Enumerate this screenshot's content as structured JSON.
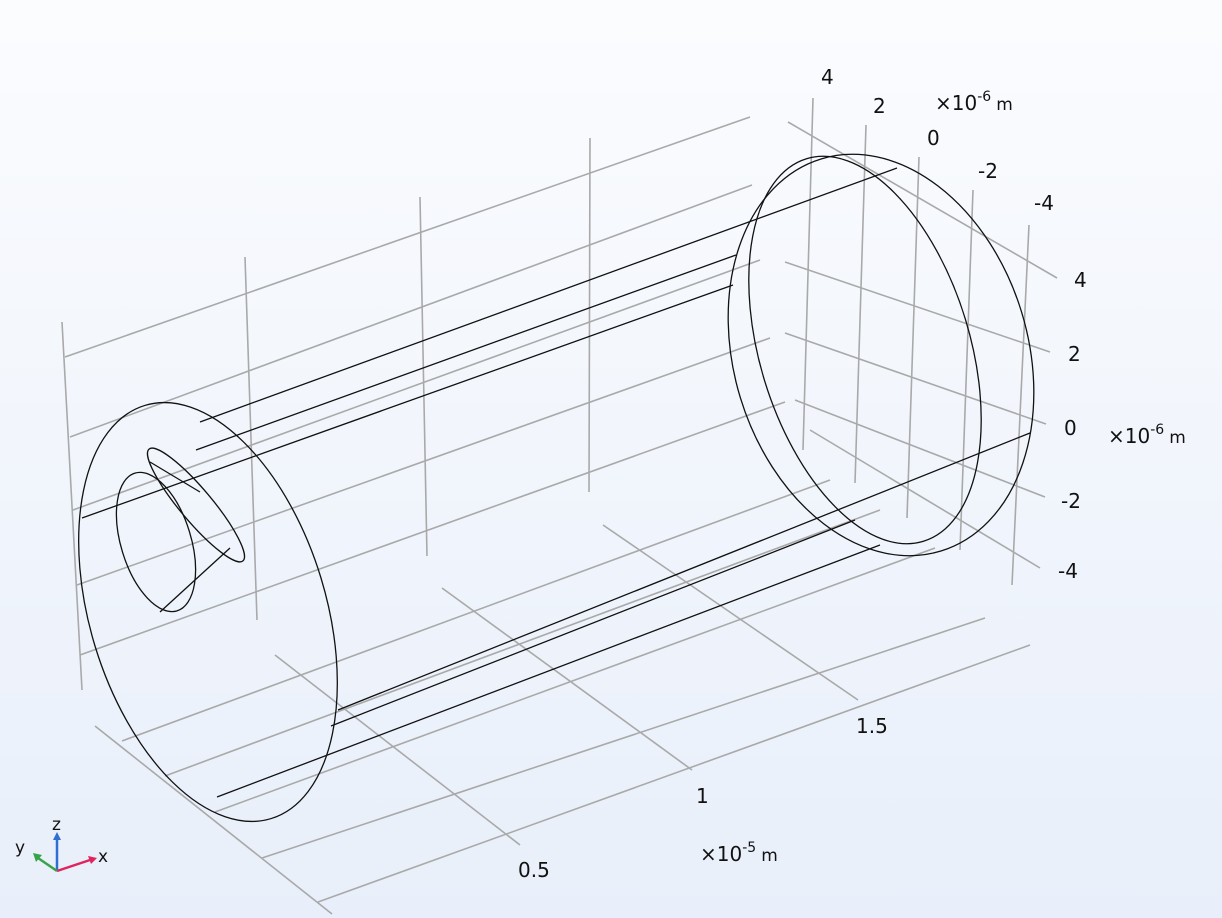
{
  "axes": {
    "x_axis": {
      "ticks": [
        "0.5",
        "1",
        "1.5"
      ],
      "scale_prefix": "×10",
      "scale_exp": "-5",
      "unit": "m"
    },
    "y_axis": {
      "ticks": [
        "4",
        "2",
        "0",
        "-2",
        "-4"
      ],
      "scale_prefix": "×10",
      "scale_exp": "-6",
      "unit": "m"
    },
    "z_axis": {
      "ticks": [
        "4",
        "2",
        "0",
        "-2",
        "-4"
      ],
      "scale_prefix": "×10",
      "scale_exp": "-6",
      "unit": "m"
    }
  },
  "triad": {
    "x": "x",
    "y": "y",
    "z": "z",
    "colors": {
      "x": "#e0245e",
      "y": "#3aa34a",
      "z": "#2f6fd1"
    }
  },
  "colors": {
    "background_top": "#fbfcfe",
    "background_bottom": "#e8effa",
    "grid": "#a9a9a9",
    "edges": "#111111"
  }
}
